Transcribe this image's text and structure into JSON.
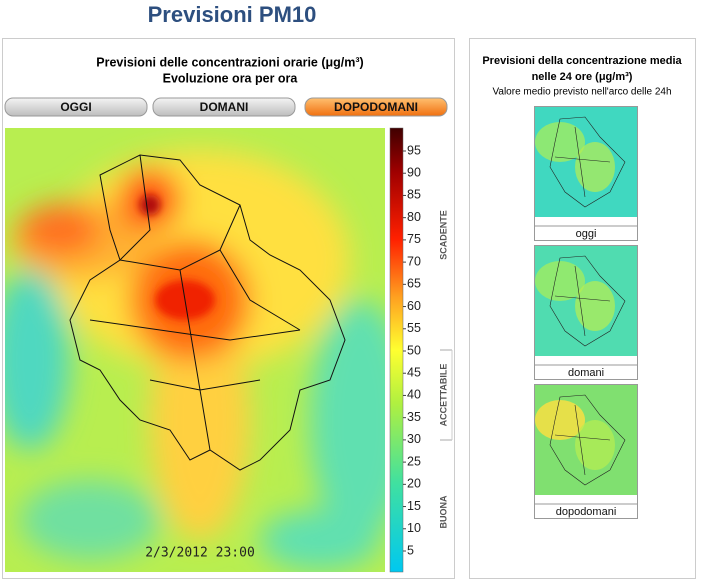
{
  "header": {
    "title": "Previsioni PM10"
  },
  "main_panel": {
    "title_line1": "Previsioni delle concentrazioni orarie (μg/m³)",
    "title_line2": "Evoluzione ora per ora",
    "tabs": [
      "OGGI",
      "DOMANI",
      "DOPODOMANI"
    ],
    "colorbar": {
      "ticks": [
        "5",
        "10",
        "15",
        "20",
        "25",
        "30",
        "35",
        "40",
        "45",
        "50",
        "55",
        "60",
        "65",
        "70",
        "75",
        "80",
        "85",
        "90",
        "95"
      ],
      "categories": [
        "SCADENTE",
        "ACCETTABILE",
        "BUONA"
      ]
    },
    "timestamp": "2/3/2012 23:00"
  },
  "side_panel": {
    "title_line1": "Previsioni della concentrazione media",
    "title_line2": "nelle 24 ore (μg/m³)",
    "subtitle": "Valore medio previsto nell'arco delle 24h",
    "thumbnails": [
      "oggi",
      "domani",
      "dopodomani"
    ]
  }
}
